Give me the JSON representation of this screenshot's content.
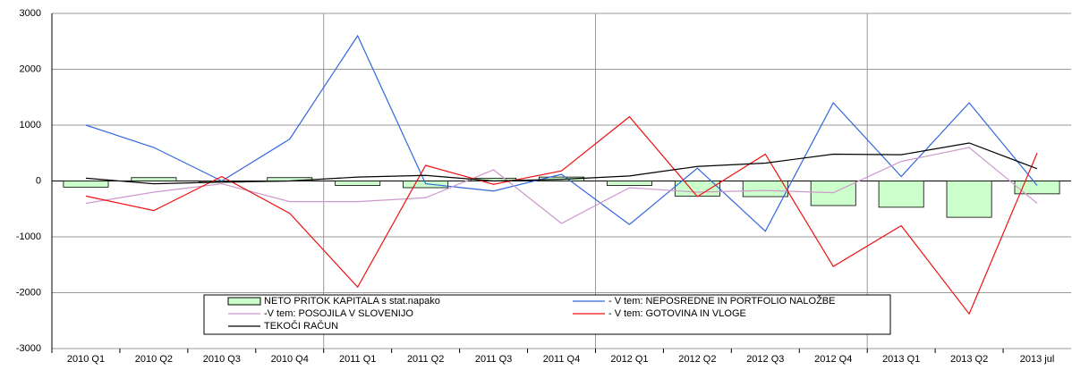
{
  "chart_data": {
    "type": "combo",
    "categories": [
      "2010 Q1",
      "2010 Q2",
      "2010 Q3",
      "2010 Q4",
      "2011 Q1",
      "2011 Q2",
      "2011 Q3",
      "2011 Q4",
      "2012 Q1",
      "2012 Q2",
      "2012 Q3",
      "2012 Q4",
      "2013 Q1",
      "2013 Q2",
      "2013 jul"
    ],
    "series": [
      {
        "name": "NETO PRITOK KAPITALA s stat.napako",
        "type": "bar",
        "color": "#ccffcc",
        "values": [
          -110,
          60,
          -20,
          60,
          -80,
          -120,
          50,
          70,
          -80,
          -270,
          -280,
          -440,
          -470,
          -650,
          -230
        ]
      },
      {
        "name": "- V tem: NEPOSREDNE IN PORTFOLIO NALOŽBE",
        "type": "line",
        "color": "#3366dd",
        "values": [
          1000,
          600,
          0,
          750,
          2600,
          -50,
          -180,
          120,
          -780,
          230,
          -900,
          1400,
          80,
          1400,
          -80
        ]
      },
      {
        "name": "-V tem: POSOJILA V SLOVENIJO",
        "type": "line",
        "color": "#cc99cc",
        "values": [
          -400,
          -200,
          -50,
          -370,
          -370,
          -300,
          200,
          -760,
          -120,
          -200,
          -170,
          -210,
          350,
          600,
          -400
        ]
      },
      {
        "name": "- V tem: GOTOVINA IN VLOGE",
        "type": "line",
        "color": "#ee1111",
        "values": [
          -270,
          -530,
          80,
          -580,
          -1900,
          280,
          -60,
          180,
          1150,
          -280,
          480,
          -1530,
          -800,
          -2380,
          500
        ]
      },
      {
        "name": "TEKOČI RAČUN",
        "type": "line",
        "color": "#000000",
        "values": [
          50,
          -50,
          -20,
          0,
          70,
          100,
          0,
          30,
          90,
          260,
          320,
          480,
          470,
          680,
          220
        ]
      }
    ],
    "ylim": [
      -3000,
      3000
    ],
    "yticks": [
      -3000,
      -2000,
      -1000,
      0,
      1000,
      2000,
      3000
    ],
    "grid": true
  }
}
